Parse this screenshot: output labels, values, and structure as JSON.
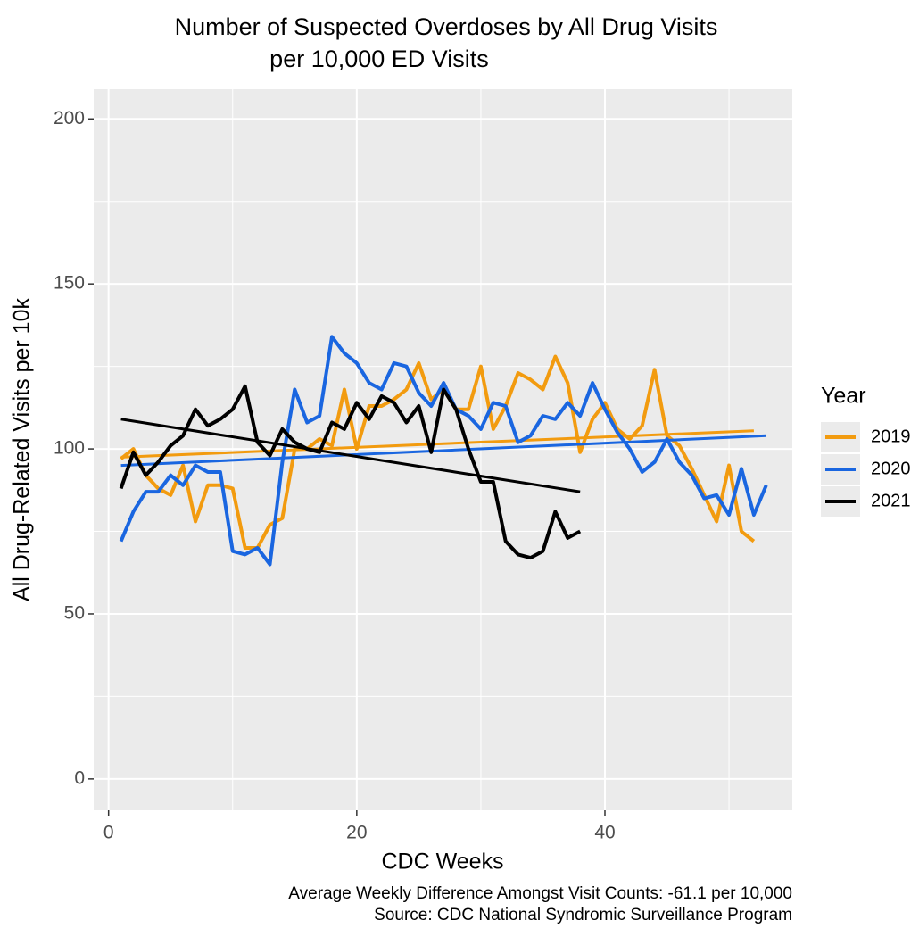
{
  "chart_data": {
    "type": "line",
    "title": "Number of Suspected Overdoses by All Drug Visits",
    "subtitle": "per 10,000 ED Visits",
    "x_label": "CDC Weeks",
    "y_label": "All Drug-Related Visits per 10k",
    "caption": [
      "Average Weekly Difference Amongst Visit Counts: -61.1 per 10,000",
      "Source: CDC National Syndromic Surveillance Program"
    ],
    "legend_title": "Year",
    "legend_position": "right",
    "grid": true,
    "xlim": [
      -1.2,
      55.1
    ],
    "xticks": [
      0,
      20,
      40
    ],
    "xminor": [
      10,
      30,
      50
    ],
    "ylim": [
      -9.5,
      209
    ],
    "yticks": [
      0,
      50,
      100,
      150,
      200
    ],
    "yminor": [
      25,
      75,
      125,
      175
    ],
    "series": [
      {
        "name": "2019",
        "color": "#f29b0f",
        "x": [
          1,
          2,
          3,
          4,
          5,
          6,
          7,
          8,
          9,
          10,
          11,
          12,
          13,
          14,
          15,
          16,
          17,
          18,
          19,
          20,
          21,
          22,
          23,
          24,
          25,
          26,
          27,
          28,
          29,
          30,
          31,
          32,
          33,
          34,
          35,
          36,
          37,
          38,
          39,
          40,
          41,
          42,
          43,
          44,
          45,
          46,
          47,
          48,
          49,
          50,
          51,
          52
        ],
        "values": [
          97,
          100,
          92,
          88,
          86,
          95,
          78,
          89,
          89,
          88,
          70,
          70,
          77,
          79,
          100,
          100,
          103,
          101,
          118,
          100,
          113,
          113,
          115,
          118,
          126,
          115,
          118,
          112,
          112,
          125,
          106,
          113,
          123,
          121,
          118,
          128,
          120,
          99,
          109,
          114,
          106,
          103,
          107,
          124,
          104,
          101,
          94,
          86,
          78,
          95,
          75,
          72
        ],
        "trend": [
          97.5,
          105.5
        ]
      },
      {
        "name": "2020",
        "color": "#1a66e0",
        "x": [
          1,
          2,
          3,
          4,
          5,
          6,
          7,
          8,
          9,
          10,
          11,
          12,
          13,
          14,
          15,
          16,
          17,
          18,
          19,
          20,
          21,
          22,
          23,
          24,
          25,
          26,
          27,
          28,
          29,
          30,
          31,
          32,
          33,
          34,
          35,
          36,
          37,
          38,
          39,
          40,
          41,
          42,
          43,
          44,
          45,
          46,
          47,
          48,
          49,
          50,
          51,
          52,
          53
        ],
        "values": [
          72,
          81,
          87,
          87,
          92,
          89,
          95,
          93,
          93,
          69,
          68,
          70,
          65,
          96,
          118,
          108,
          110,
          134,
          129,
          126,
          120,
          118,
          126,
          125,
          117,
          113,
          120,
          112,
          110,
          106,
          114,
          113,
          102,
          104,
          110,
          109,
          114,
          110,
          120,
          112,
          105,
          100,
          93,
          96,
          103,
          96,
          92,
          85,
          86,
          80,
          94,
          80,
          89
        ],
        "trend": [
          95,
          104
        ]
      },
      {
        "name": "2021",
        "color": "#000000",
        "x": [
          1,
          2,
          3,
          4,
          5,
          6,
          7,
          8,
          9,
          10,
          11,
          12,
          13,
          14,
          15,
          16,
          17,
          18,
          19,
          20,
          21,
          22,
          23,
          24,
          25,
          26,
          27,
          28,
          29,
          30,
          31,
          32,
          33,
          34,
          35,
          36,
          37,
          38
        ],
        "values": [
          88,
          99,
          92,
          96,
          101,
          104,
          112,
          107,
          109,
          112,
          119,
          102,
          98,
          106,
          102,
          100,
          99,
          108,
          106,
          114,
          109,
          116,
          114,
          108,
          113,
          99,
          118,
          112,
          100,
          90,
          90,
          72,
          68,
          67,
          69,
          81,
          73,
          75
        ],
        "trend": [
          109,
          87
        ]
      }
    ]
  }
}
